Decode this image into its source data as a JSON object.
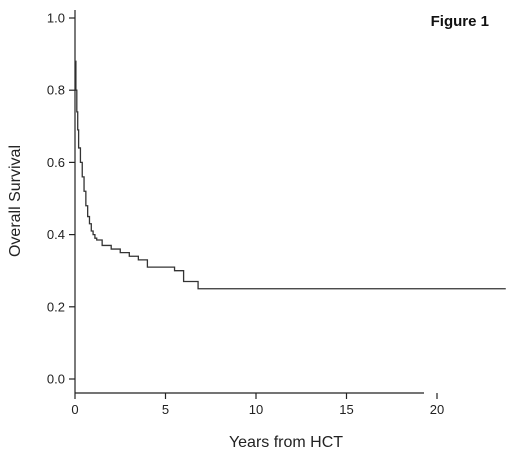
{
  "chart_data": {
    "type": "line",
    "title": "Figure 1",
    "xlabel": "Years from HCT",
    "ylabel": "Overall Survival",
    "xlim": [
      0,
      24
    ],
    "ylim": [
      0.0,
      1.0
    ],
    "xticks": [
      0,
      5,
      10,
      15,
      20
    ],
    "xtick_labels": [
      "0",
      "5",
      "10",
      "15",
      "20"
    ],
    "yticks": [
      0.0,
      0.2,
      0.4,
      0.6,
      0.8,
      1.0
    ],
    "ytick_labels": [
      "0.0",
      "0.2",
      "0.4",
      "0.6",
      "0.8",
      "1.0"
    ],
    "grid": false,
    "series": [
      {
        "step": "post",
        "x": [
          0,
          0.05,
          0.1,
          0.15,
          0.2,
          0.3,
          0.4,
          0.5,
          0.6,
          0.7,
          0.8,
          0.9,
          1.0,
          1.1,
          1.2,
          1.5,
          2.0,
          2.5,
          3.0,
          3.5,
          4.0,
          5.5,
          6.0,
          6.8,
          23.8
        ],
        "y": [
          0.88,
          0.8,
          0.74,
          0.69,
          0.64,
          0.6,
          0.56,
          0.52,
          0.48,
          0.45,
          0.43,
          0.41,
          0.4,
          0.39,
          0.385,
          0.37,
          0.36,
          0.35,
          0.34,
          0.33,
          0.31,
          0.3,
          0.27,
          0.25,
          0.25
        ]
      }
    ]
  }
}
